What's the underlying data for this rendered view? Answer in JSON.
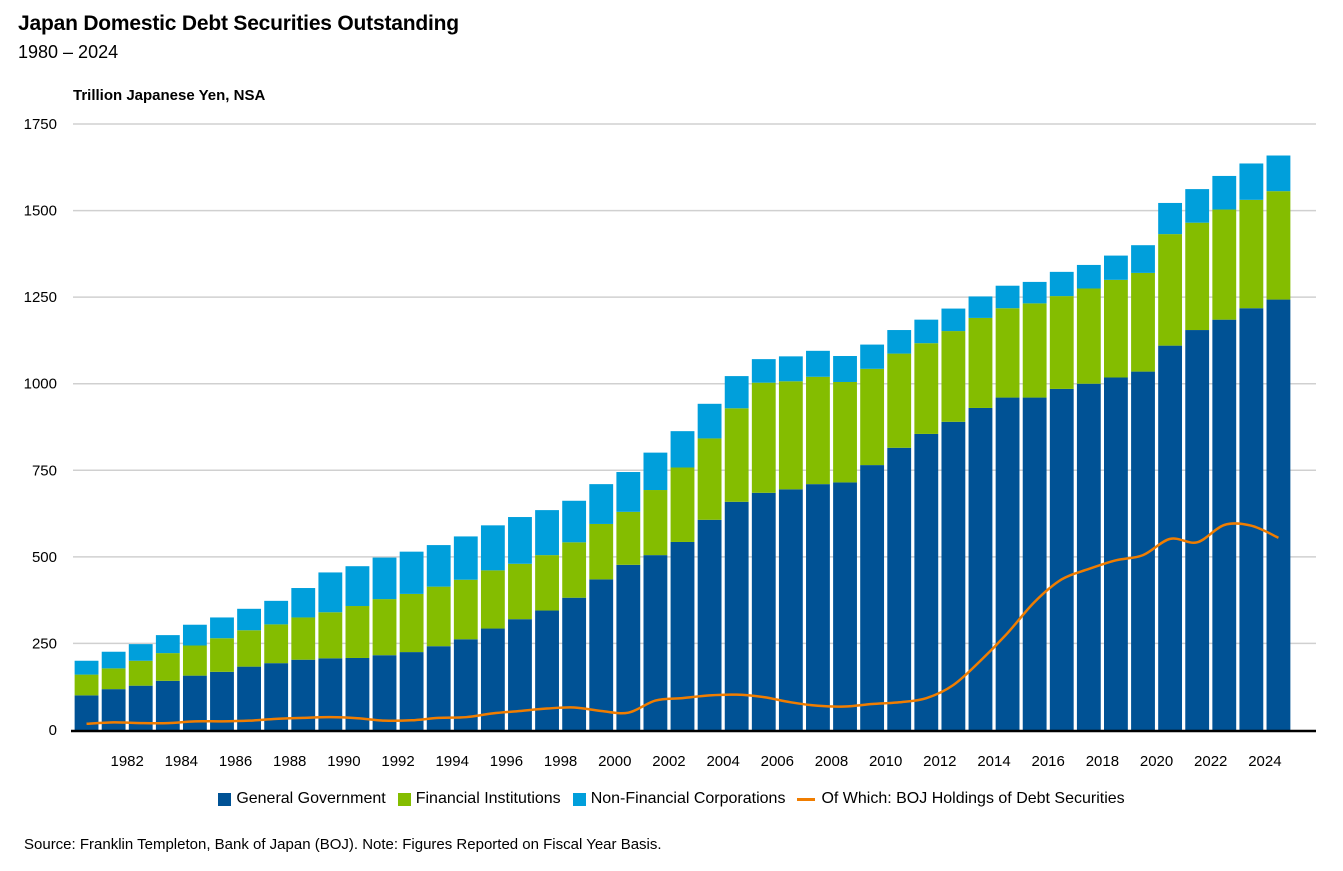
{
  "chart_data": {
    "type": "bar",
    "stacked": true,
    "title": "Japan Domestic Debt Securities Outstanding",
    "subtitle": "1980 – 2024",
    "ylabel": "Trillion Japanese Yen, NSA",
    "xlabel": "",
    "ylim": [
      0,
      1750
    ],
    "yticks": [
      0,
      250,
      500,
      750,
      1000,
      1250,
      1500,
      1750
    ],
    "grid": true,
    "legend_position": "bottom",
    "categories": [
      1980,
      1981,
      1982,
      1983,
      1984,
      1985,
      1986,
      1987,
      1988,
      1989,
      1990,
      1991,
      1992,
      1993,
      1994,
      1995,
      1996,
      1997,
      1998,
      1999,
      2000,
      2001,
      2002,
      2003,
      2004,
      2005,
      2006,
      2007,
      2008,
      2009,
      2010,
      2011,
      2012,
      2013,
      2014,
      2015,
      2016,
      2017,
      2018,
      2019,
      2020,
      2021,
      2022,
      2023,
      2024
    ],
    "xtick_labels": [
      "1982",
      "1984",
      "1986",
      "1988",
      "1990",
      "1992",
      "1994",
      "1996",
      "1998",
      "2000",
      "2002",
      "2004",
      "2006",
      "2008",
      "2010",
      "2012",
      "2014",
      "2016",
      "2018",
      "2020",
      "2022",
      "2024"
    ],
    "series": [
      {
        "name": "General Government",
        "kind": "bar",
        "color": "#005295",
        "values": [
          100,
          118,
          128,
          142,
          157,
          168,
          183,
          193,
          203,
          207,
          208,
          216,
          225,
          242,
          262,
          293,
          320,
          345,
          382,
          435,
          477,
          505,
          543,
          607,
          659,
          685,
          695,
          710,
          715,
          765,
          815,
          855,
          890,
          930,
          960,
          960,
          985,
          1000,
          1018,
          1035,
          1110,
          1155,
          1185,
          1218,
          1243
        ]
      },
      {
        "name": "Financial Institutions",
        "kind": "bar",
        "color": "#84bd00",
        "values": [
          60,
          60,
          72,
          80,
          87,
          97,
          105,
          112,
          122,
          133,
          150,
          162,
          168,
          172,
          172,
          168,
          160,
          160,
          160,
          160,
          153,
          188,
          215,
          235,
          270,
          318,
          312,
          310,
          290,
          278,
          272,
          262,
          262,
          260,
          258,
          272,
          268,
          275,
          282,
          285,
          322,
          310,
          318,
          313,
          313
        ]
      },
      {
        "name": "Non-Financial Corporations",
        "kind": "bar",
        "color": "#009fdb",
        "values": [
          40,
          48,
          48,
          52,
          60,
          60,
          62,
          68,
          85,
          115,
          115,
          120,
          122,
          120,
          125,
          130,
          135,
          130,
          120,
          115,
          115,
          108,
          105,
          100,
          93,
          68,
          72,
          75,
          75,
          70,
          68,
          68,
          65,
          62,
          65,
          62,
          70,
          68,
          70,
          80,
          90,
          97,
          97,
          105,
          103
        ]
      },
      {
        "name": "Of Which: BOJ Holdings of Debt Securities",
        "kind": "line",
        "color": "#f07d00",
        "values": [
          18,
          22,
          20,
          20,
          25,
          25,
          27,
          32,
          35,
          37,
          34,
          27,
          28,
          35,
          37,
          48,
          55,
          62,
          65,
          55,
          50,
          85,
          92,
          100,
          102,
          95,
          80,
          70,
          68,
          75,
          80,
          92,
          130,
          200,
          280,
          370,
          435,
          465,
          490,
          505,
          552,
          542,
          592,
          590,
          555
        ]
      }
    ]
  },
  "source": "Source: Franklin Templeton, Bank of Japan (BOJ). Note: Figures Reported on Fiscal Year Basis."
}
